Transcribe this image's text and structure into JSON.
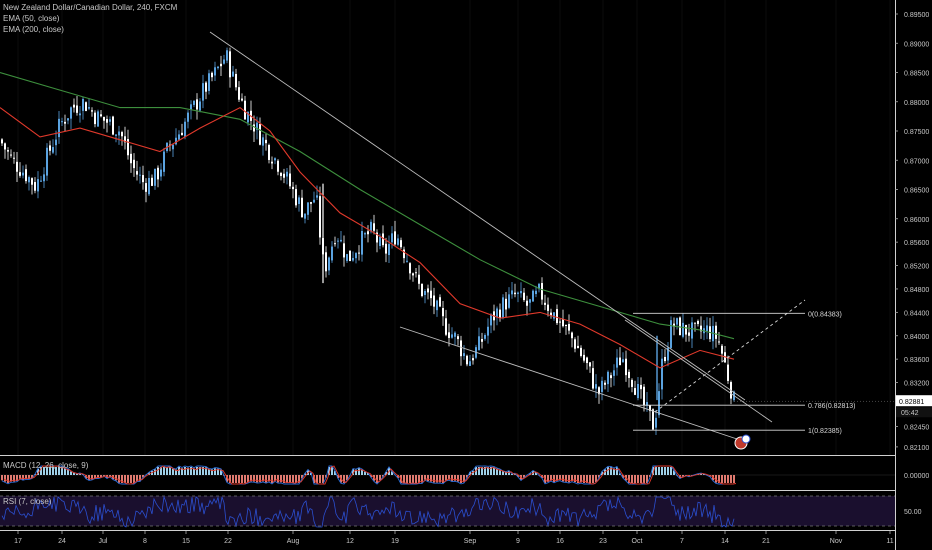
{
  "header": {
    "symbol_title": "New Zealand Dollar/Canadian Dollar, 240, FXCM",
    "ema50_label": "EMA (50, close)",
    "ema200_label": "EMA (200, close)"
  },
  "indicators": {
    "macd_label": "MACD (12, 26, close, 9)",
    "macd_axis_label": "0.00000",
    "rsi_label": "RSI (7, close)",
    "rsi_axis_label": "50.00"
  },
  "price_box": {
    "price": "0.82881",
    "countdown": "05:42"
  },
  "fib_levels": [
    {
      "label": "0(0.84383)",
      "value": 0.84383
    },
    {
      "label": "0.786(0.82813)",
      "value": 0.82813
    },
    {
      "label": "1(0.82385)",
      "value": 0.82385
    }
  ],
  "colors": {
    "background": "#000000",
    "candle_up": "#5ba3e0",
    "candle_down": "#ffffff",
    "ema50": "#e0392b",
    "ema200": "#3d8f3d",
    "macd_line": "#2b6ed9",
    "signal_line": "#e0392b",
    "rsi_line": "#2b4fd0",
    "rsi_band": "#1a0f2e"
  },
  "chart_data": {
    "type": "candlestick",
    "ylim": [
      0.8195,
      0.8975
    ],
    "y_ticks": [
      "0.89500",
      "0.89000",
      "0.88500",
      "0.88000",
      "0.87500",
      "0.87000",
      "0.86500",
      "0.86000",
      "0.85600",
      "0.85200",
      "0.84800",
      "0.84400",
      "0.84000",
      "0.83600",
      "0.83200",
      "0.82450",
      "0.82100"
    ],
    "x_ticks": [
      "17",
      "24",
      "Jul",
      "8",
      "15",
      "22",
      "Aug",
      "12",
      "19",
      "Sep",
      "9",
      "16",
      "23",
      "Oct",
      "7",
      "14",
      "21",
      "Nov",
      "11"
    ],
    "close_path": [
      [
        0,
        0.8735
      ],
      [
        12,
        0.87
      ],
      [
        24,
        0.868
      ],
      [
        36,
        0.8655
      ],
      [
        48,
        0.871
      ],
      [
        60,
        0.876
      ],
      [
        72,
        0.879
      ],
      [
        84,
        0.88
      ],
      [
        96,
        0.8775
      ],
      [
        108,
        0.8765
      ],
      [
        120,
        0.875
      ],
      [
        132,
        0.869
      ],
      [
        144,
        0.866
      ],
      [
        156,
        0.867
      ],
      [
        168,
        0.872
      ],
      [
        180,
        0.875
      ],
      [
        192,
        0.8785
      ],
      [
        204,
        0.882
      ],
      [
        216,
        0.885
      ],
      [
        226,
        0.888
      ],
      [
        234,
        0.8835
      ],
      [
        244,
        0.879
      ],
      [
        256,
        0.8755
      ],
      [
        268,
        0.872
      ],
      [
        280,
        0.869
      ],
      [
        292,
        0.865
      ],
      [
        304,
        0.861
      ],
      [
        316,
        0.864
      ],
      [
        324,
        0.851
      ],
      [
        336,
        0.858
      ],
      [
        348,
        0.853
      ],
      [
        360,
        0.856
      ],
      [
        372,
        0.858
      ],
      [
        384,
        0.854
      ],
      [
        396,
        0.8575
      ],
      [
        408,
        0.853
      ],
      [
        420,
        0.848
      ],
      [
        432,
        0.846
      ],
      [
        444,
        0.842
      ],
      [
        456,
        0.8395
      ],
      [
        468,
        0.8355
      ],
      [
        480,
        0.8385
      ],
      [
        492,
        0.843
      ],
      [
        504,
        0.8455
      ],
      [
        516,
        0.847
      ],
      [
        528,
        0.845
      ],
      [
        540,
        0.8475
      ],
      [
        552,
        0.844
      ],
      [
        564,
        0.8415
      ],
      [
        576,
        0.8385
      ],
      [
        588,
        0.8345
      ],
      [
        598,
        0.83
      ],
      [
        610,
        0.833
      ],
      [
        622,
        0.8365
      ],
      [
        634,
        0.832
      ],
      [
        644,
        0.828
      ],
      [
        654,
        0.8245
      ],
      [
        662,
        0.835
      ],
      [
        672,
        0.842
      ],
      [
        684,
        0.841
      ],
      [
        696,
        0.8405
      ],
      [
        708,
        0.841
      ],
      [
        718,
        0.8395
      ],
      [
        726,
        0.8345
      ],
      [
        734,
        0.8288
      ]
    ],
    "ema50_path": [
      [
        0,
        0.879
      ],
      [
        40,
        0.874
      ],
      [
        80,
        0.8755
      ],
      [
        120,
        0.8735
      ],
      [
        160,
        0.8715
      ],
      [
        200,
        0.8755
      ],
      [
        240,
        0.879
      ],
      [
        270,
        0.875
      ],
      [
        300,
        0.868
      ],
      [
        340,
        0.861
      ],
      [
        380,
        0.857
      ],
      [
        420,
        0.8525
      ],
      [
        460,
        0.8455
      ],
      [
        500,
        0.843
      ],
      [
        540,
        0.844
      ],
      [
        580,
        0.842
      ],
      [
        620,
        0.8385
      ],
      [
        660,
        0.8345
      ],
      [
        700,
        0.8375
      ],
      [
        734,
        0.836
      ]
    ],
    "ema200_path": [
      [
        0,
        0.885
      ],
      [
        60,
        0.882
      ],
      [
        120,
        0.879
      ],
      [
        180,
        0.879
      ],
      [
        240,
        0.877
      ],
      [
        300,
        0.8715
      ],
      [
        360,
        0.865
      ],
      [
        420,
        0.859
      ],
      [
        480,
        0.853
      ],
      [
        540,
        0.848
      ],
      [
        600,
        0.845
      ],
      [
        660,
        0.842
      ],
      [
        700,
        0.841
      ],
      [
        734,
        0.8395
      ]
    ]
  }
}
